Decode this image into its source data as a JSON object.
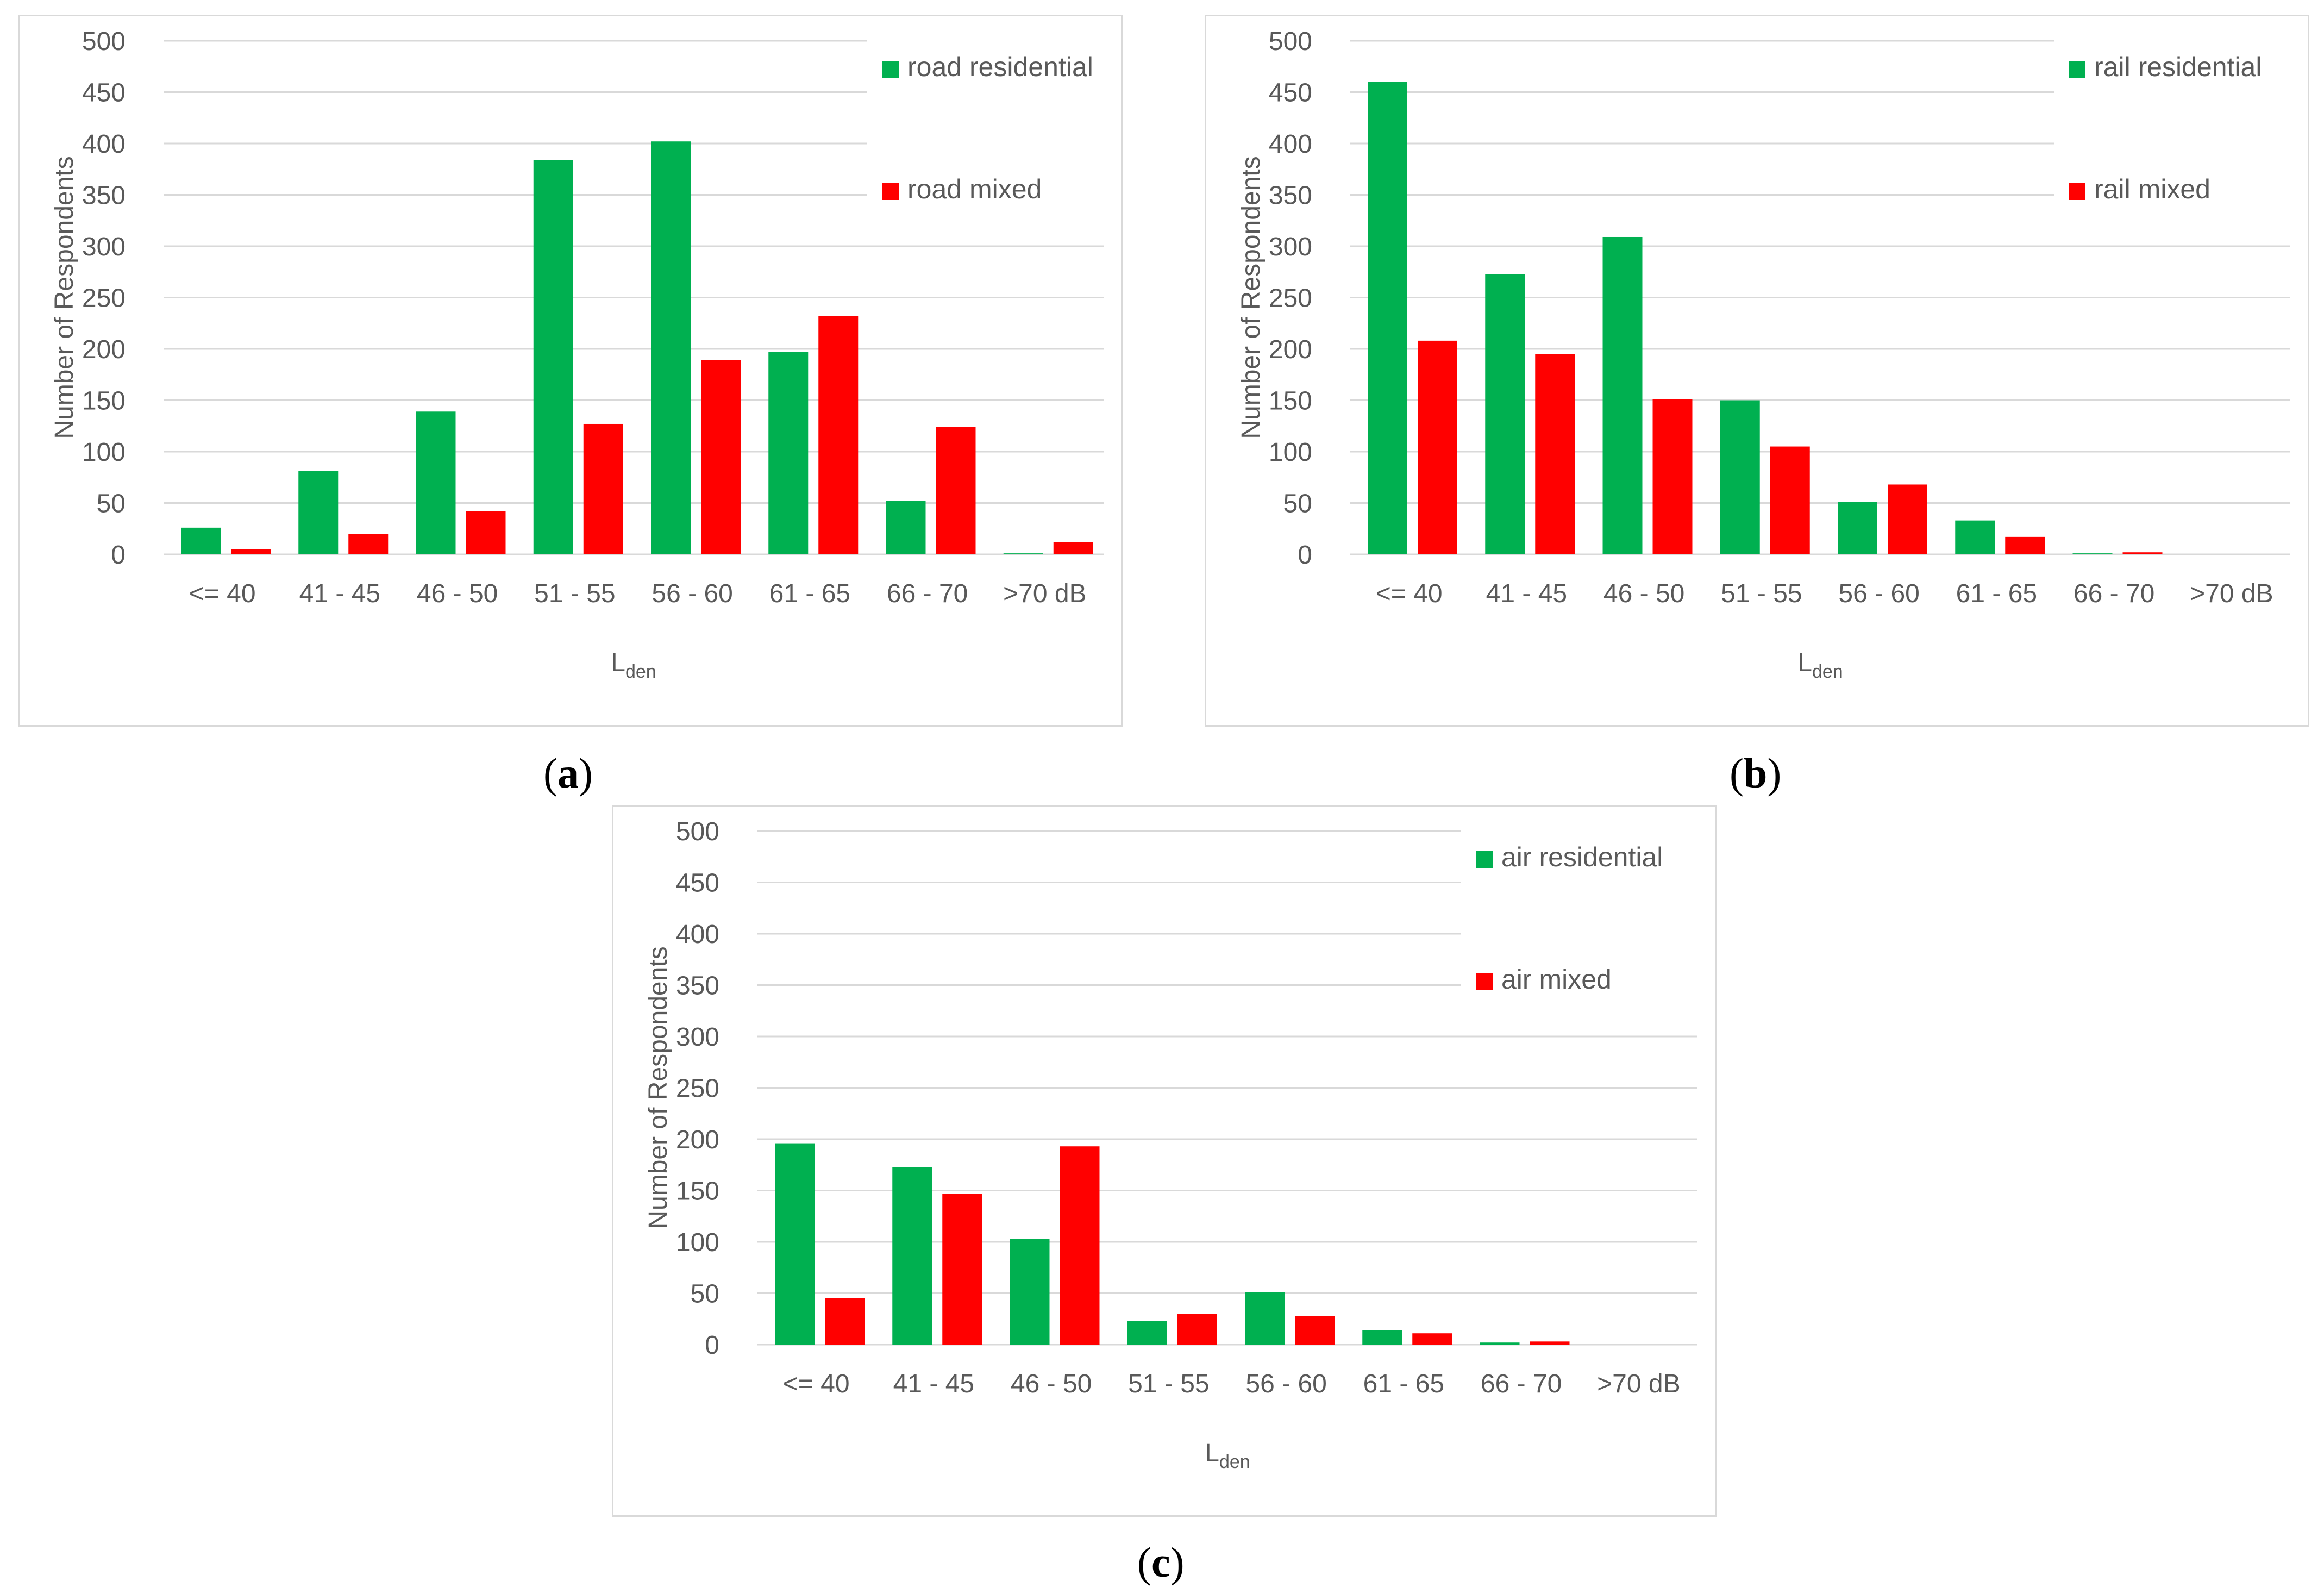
{
  "colors": {
    "residential": "#00b050",
    "mixed": "#ff0000",
    "grid": "#d9d9d9",
    "text": "#595959"
  },
  "captions": {
    "a": {
      "open": "(",
      "letter": "a",
      "close": ")"
    },
    "b": {
      "open": "(",
      "letter": "b",
      "close": ")"
    },
    "c": {
      "open": "(",
      "letter": "c",
      "close": ")"
    }
  },
  "chart_data": [
    {
      "id": "a",
      "type": "bar",
      "title": "",
      "xlabel": "L",
      "xlabel_sub": "den",
      "ylabel": "Number of  Respondents",
      "ylim": [
        0,
        500
      ],
      "yticks": [
        "0",
        "50",
        "100",
        "150",
        "200",
        "250",
        "300",
        "350",
        "400",
        "450",
        "500"
      ],
      "categories": [
        "<= 40",
        "41 - 45",
        "46 - 50",
        "51 - 55",
        "56 - 60",
        "61 - 65",
        "66 - 70",
        ">70 dB"
      ],
      "series": [
        {
          "name": "road residential",
          "color": "#00b050",
          "values": [
            26,
            81,
            139,
            384,
            402,
            197,
            52,
            1
          ]
        },
        {
          "name": "road mixed",
          "color": "#ff0000",
          "values": [
            5,
            20,
            42,
            127,
            189,
            232,
            124,
            12
          ]
        }
      ],
      "legend": "right"
    },
    {
      "id": "b",
      "type": "bar",
      "title": "",
      "xlabel": "L",
      "xlabel_sub": "den",
      "ylabel": "Number of  Respondents",
      "ylim": [
        0,
        500
      ],
      "yticks": [
        "0",
        "50",
        "100",
        "150",
        "200",
        "250",
        "300",
        "350",
        "400",
        "450",
        "500"
      ],
      "categories": [
        "<= 40",
        "41 - 45",
        "46 - 50",
        "51 - 55",
        "56 - 60",
        "61 - 65",
        "66 - 70",
        ">70 dB"
      ],
      "series": [
        {
          "name": "rail residential",
          "color": "#00b050",
          "values": [
            460,
            273,
            309,
            150,
            51,
            33,
            1,
            0
          ]
        },
        {
          "name": "rail mixed",
          "color": "#ff0000",
          "values": [
            208,
            195,
            151,
            105,
            68,
            17,
            2,
            0
          ]
        }
      ],
      "legend": "right"
    },
    {
      "id": "c",
      "type": "bar",
      "title": "",
      "xlabel": "L",
      "xlabel_sub": "den",
      "ylabel": "Number of  Respondents",
      "ylim": [
        0,
        500
      ],
      "yticks": [
        "0",
        "50",
        "100",
        "150",
        "200",
        "250",
        "300",
        "350",
        "400",
        "450",
        "500"
      ],
      "categories": [
        "<= 40",
        "41 - 45",
        "46 - 50",
        "51 - 55",
        "56 - 60",
        "61 - 65",
        "66 - 70",
        ">70 dB"
      ],
      "series": [
        {
          "name": "air residential",
          "color": "#00b050",
          "values": [
            196,
            173,
            103,
            23,
            51,
            14,
            2,
            0
          ]
        },
        {
          "name": "air mixed",
          "color": "#ff0000",
          "values": [
            45,
            147,
            193,
            30,
            28,
            11,
            3,
            0
          ]
        }
      ],
      "legend": "right"
    }
  ]
}
